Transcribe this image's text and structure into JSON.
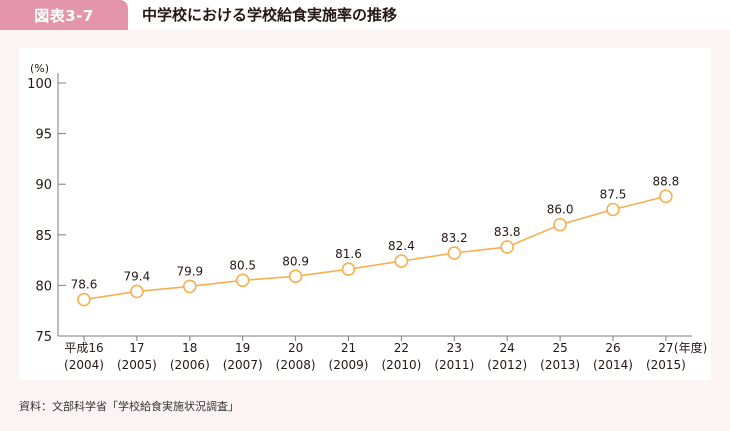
{
  "header": {
    "figure_label": "図表3-7",
    "title": "中学校における学校給食実施率の推移"
  },
  "colors": {
    "tab": "#e396ab",
    "line": "#f5b050",
    "axis": "#7d7d7d",
    "panel": "#fcf4f4"
  },
  "chart_data": {
    "type": "line",
    "title": "中学校における学校給食実施率の推移",
    "ylabel": "(%)",
    "xlabel": "(年度)",
    "ylim": [
      75,
      100
    ],
    "yticks": [
      "75",
      "80",
      "85",
      "90",
      "95",
      "100"
    ],
    "categories": [
      {
        "era": "平成16",
        "year": "(2004)"
      },
      {
        "era": "17",
        "year": "(2005)"
      },
      {
        "era": "18",
        "year": "(2006)"
      },
      {
        "era": "19",
        "year": "(2007)"
      },
      {
        "era": "20",
        "year": "(2008)"
      },
      {
        "era": "21",
        "year": "(2009)"
      },
      {
        "era": "22",
        "year": "(2010)"
      },
      {
        "era": "23",
        "year": "(2011)"
      },
      {
        "era": "24",
        "year": "(2012)"
      },
      {
        "era": "25",
        "year": "(2013)"
      },
      {
        "era": "26",
        "year": "(2014)"
      },
      {
        "era": "27",
        "year": "(2015)"
      }
    ],
    "series": [
      {
        "name": "学校給食実施率",
        "values": [
          78.6,
          79.4,
          79.9,
          80.5,
          80.9,
          81.6,
          82.4,
          83.2,
          83.8,
          86.0,
          87.5,
          88.8
        ],
        "labels": [
          "78.6",
          "79.4",
          "79.9",
          "80.5",
          "80.9",
          "81.6",
          "82.4",
          "83.2",
          "83.8",
          "86.0",
          "87.5",
          "88.8"
        ]
      }
    ],
    "grid": false,
    "legend": "none"
  },
  "footer": {
    "source": "資料：文部科学省「学校給食実施状況調査」"
  }
}
